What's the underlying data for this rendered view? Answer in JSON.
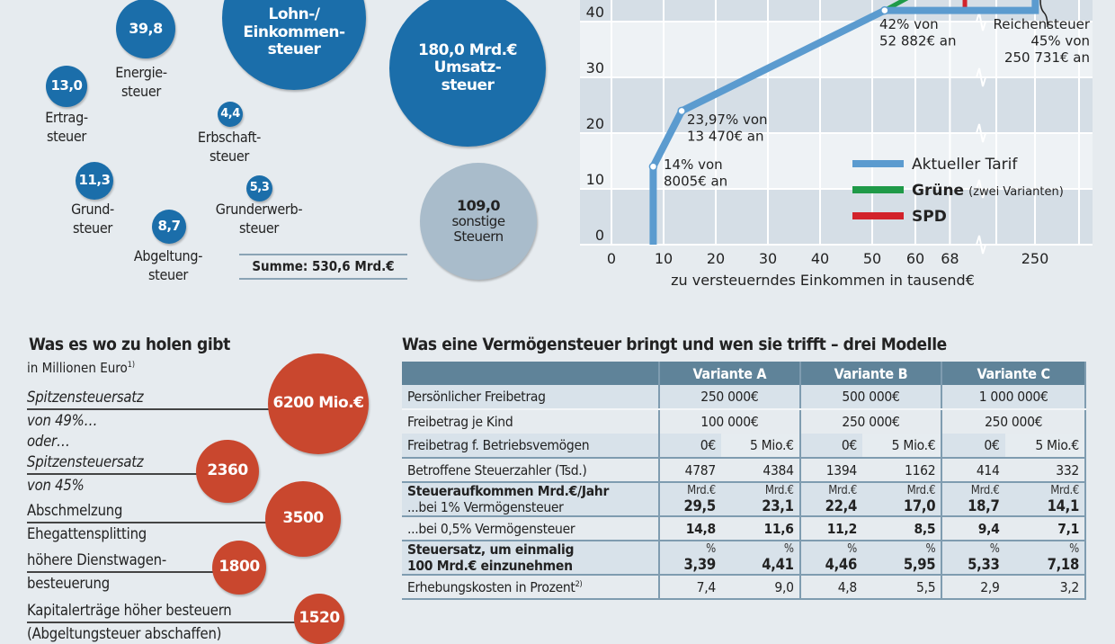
{
  "revenue_bubbles": {
    "items": [
      {
        "value": "39,8",
        "label1": "Energie-",
        "label2": "steuer"
      },
      {
        "value": "",
        "label1": "Lohn-/",
        "label2": "Einkommen-",
        "label3": "steuer"
      },
      {
        "value": "180,0 Mrd.€",
        "label1": "Umsatz-",
        "label2": "steuer"
      },
      {
        "value": "13,0",
        "label1": "Ertrag-",
        "label2": "steuer"
      },
      {
        "value": "4,4",
        "label1": "Erbschaft-",
        "label2": "steuer"
      },
      {
        "value": "11,3",
        "label1": "Grund-",
        "label2": "steuer"
      },
      {
        "value": "5,3",
        "label1": "Grunderwerb-",
        "label2": "steuer"
      },
      {
        "value": "8,7",
        "label1": "Abgeltung-",
        "label2": "steuer"
      },
      {
        "value": "109,0",
        "label1": "sonstige",
        "label2": "Steuern"
      }
    ],
    "sum": "Summe: 530,6 Mrd.€"
  },
  "chart_data": {
    "type": "line",
    "xlabel": "zu versteuerndes Einkommen in tausend€",
    "ylabel": "",
    "x_ticks": [
      0,
      10,
      20,
      30,
      40,
      50,
      60,
      68,
      250
    ],
    "x_tick_labels": [
      "0",
      "10",
      "20",
      "30",
      "40",
      "50",
      "60",
      "68",
      "250"
    ],
    "y_ticks": [
      0,
      10,
      20,
      30,
      40
    ],
    "y_tick_labels": [
      "0",
      "10",
      "20",
      "30",
      "40"
    ],
    "ylim": [
      0,
      50
    ],
    "x_axis_break": "between 68 and 250",
    "series": [
      {
        "name": "Aktueller Tarif",
        "color": "#5b9bcf",
        "points": [
          [
            8.005,
            0
          ],
          [
            8.005,
            14
          ],
          [
            13.47,
            23.97
          ],
          [
            52.882,
            42
          ],
          [
            250.731,
            42
          ],
          [
            250.731,
            45
          ]
        ]
      },
      {
        "name": "Grüne",
        "note": "(zwei Varianten)",
        "color": "#1f9a48",
        "points": [
          [
            52.882,
            42
          ],
          [
            60,
            45
          ]
        ]
      },
      {
        "name": "SPD",
        "color": "#d2222b",
        "points": [
          [
            52.882,
            42
          ],
          [
            100,
            42
          ],
          [
            100,
            49
          ]
        ]
      }
    ],
    "annotations": [
      {
        "line1": "14% von",
        "line2": "8005€ an"
      },
      {
        "line1": "23,97% von",
        "line2": "13 470€ an"
      },
      {
        "line1": "42% von",
        "line2": "52 882€ an"
      },
      {
        "line1": "Reichensteuer",
        "line2": "45% von",
        "line3": "250 731€ an"
      }
    ]
  },
  "potentials": {
    "title": "Was es wo zu holen gibt",
    "subtitle": "in Millionen Euro",
    "footnote": "1)",
    "items": [
      {
        "line1": "Spitzensteuersatz",
        "line2": "von 49%…",
        "line3": "oder…",
        "value": "6200 Mio.€"
      },
      {
        "line1": "Spitzensteuersatz",
        "line2": "von 45%",
        "value": "2360"
      },
      {
        "line1": "Abschmelzung",
        "line2": "Ehegattensplitting",
        "value": "3500"
      },
      {
        "line1": "höhere Dienstwagen-",
        "line2": "besteuerung",
        "value": "1800"
      },
      {
        "line1": "Kapitalerträge höher besteuern",
        "line2": "(Abgeltungsteuer abschaffen)",
        "value": "1520"
      }
    ]
  },
  "wealth_tax": {
    "title": "Was eine Vermögensteuer bringt und wen sie trifft – drei Modelle",
    "headers": [
      "",
      "Variante A",
      "Variante B",
      "Variante C"
    ],
    "rows": [
      {
        "label": "Persönlicher Freibetrag",
        "span": [
          "250 000€",
          "500 000€",
          "1 000 000€"
        ]
      },
      {
        "label": "Freibetrag je Kind",
        "span": [
          "100 000€",
          "250 000€",
          "250 000€"
        ]
      },
      {
        "label": "Freibetrag f. Betriebsvemögen",
        "cells": [
          "0€",
          "5 Mio.€",
          "0€",
          "5 Mio.€",
          "0€",
          "5 Mio.€"
        ]
      },
      {
        "label": "Betroffene Steuerzahler (Tsd.)",
        "cells": [
          "4787",
          "4384",
          "1394",
          "1162",
          "414",
          "332"
        ]
      },
      {
        "label": "Steueraufkommen Mrd.€/Jahr",
        "label2": "...bei 1% Vermögensteuer",
        "unit": "Mrd.€",
        "cells": [
          "29,5",
          "23,1",
          "22,4",
          "17,0",
          "18,7",
          "14,1"
        ]
      },
      {
        "label": "...bei 0,5% Vermögensteuer",
        "cells": [
          "14,8",
          "11,6",
          "11,2",
          "8,5",
          "9,4",
          "7,1"
        ],
        "bold": true
      },
      {
        "label": "Steuersatz, um einmalig",
        "label2": "100 Mrd.€ einzunehmen",
        "unit": "%",
        "cells": [
          "3,39",
          "4,41",
          "4,46",
          "5,95",
          "5,33",
          "7,18"
        ],
        "boldlabel": true
      },
      {
        "label": "Erhebungskosten in Prozent",
        "footnote": "2)",
        "cells": [
          "7,4",
          "9,0",
          "4,8",
          "5,5",
          "2,9",
          "3,2"
        ]
      }
    ]
  }
}
